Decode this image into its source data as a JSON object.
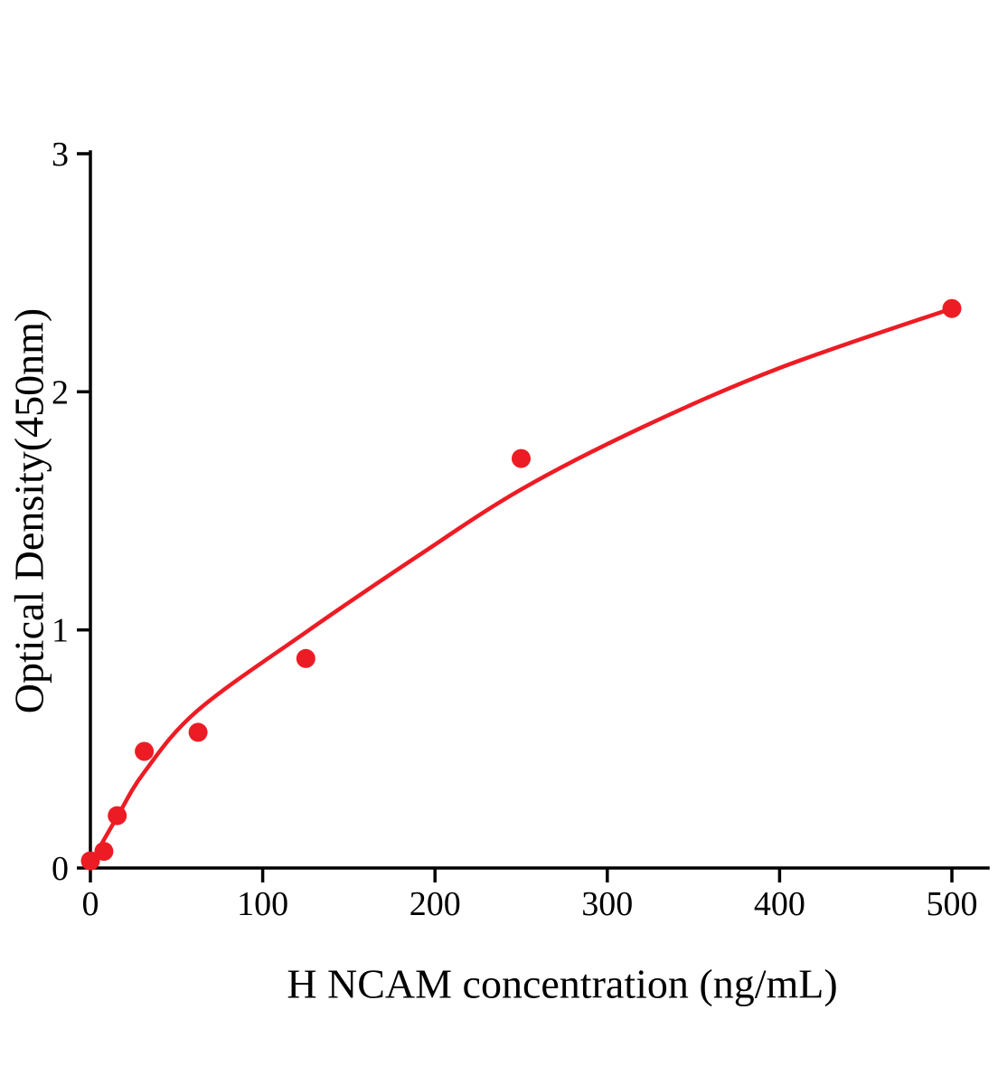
{
  "chart_data": {
    "type": "scatter",
    "title": "",
    "xlabel": "H NCAM concentration (ng/mL)",
    "ylabel": "Optical Density(450nm)",
    "xlim": [
      0,
      521
    ],
    "ylim": [
      0,
      3
    ],
    "x_ticks": [
      0,
      100,
      200,
      300,
      400,
      500
    ],
    "y_ticks": [
      0,
      1,
      2,
      3
    ],
    "grid": false,
    "legend": "none",
    "series": [
      {
        "name": "standard-curve-points",
        "type": "scatter",
        "x": [
          0,
          7.8,
          15.6,
          31.25,
          62.5,
          125,
          250,
          500
        ],
        "y": [
          0.03,
          0.07,
          0.22,
          0.49,
          0.57,
          0.88,
          1.72,
          2.35
        ]
      }
    ],
    "fit_curve": {
      "name": "fitted-curve",
      "x": [
        0,
        8,
        16,
        31,
        62,
        125,
        190,
        250,
        320,
        400,
        500
      ],
      "y": [
        0.02,
        0.12,
        0.22,
        0.4,
        0.66,
        0.99,
        1.31,
        1.59,
        1.85,
        2.1,
        2.35
      ]
    },
    "colors": {
      "points": "#ed1c24",
      "curve": "#ed1c24",
      "axis": "#000000"
    }
  }
}
